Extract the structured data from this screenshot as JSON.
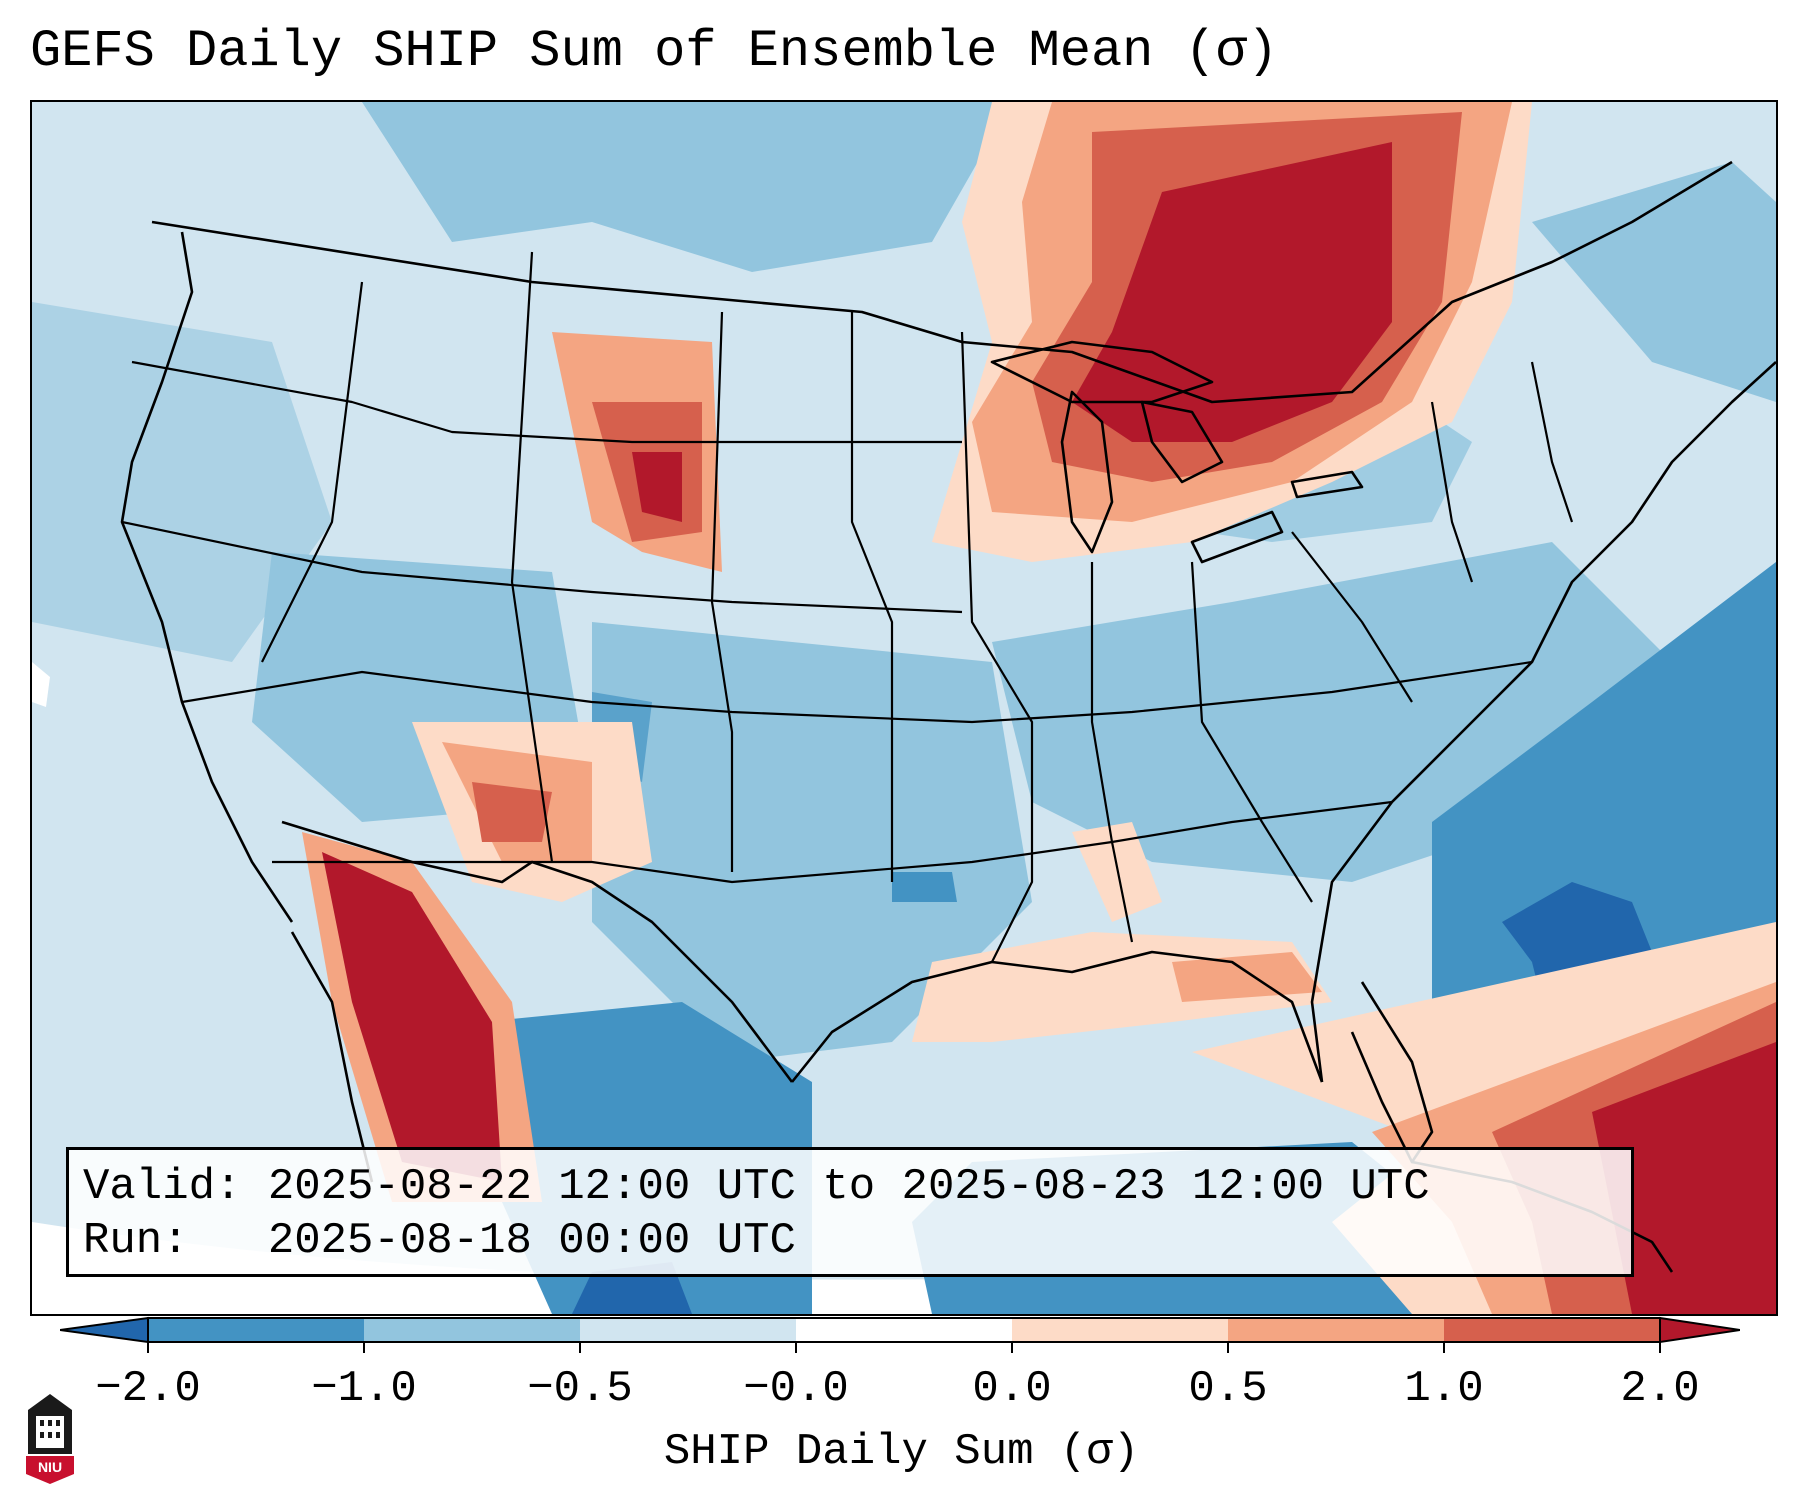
{
  "title": "GEFS Daily SHIP Sum of Ensemble Mean (σ)",
  "info": {
    "valid_line": "Valid: 2025-08-22 12:00 UTC to 2025-08-23 12:00 UTC",
    "run_line": "Run:   2025-08-18 00:00 UTC"
  },
  "colorbar": {
    "label": "SHIP Daily Sum (σ)",
    "ticks": [
      "−2.0",
      "−1.0",
      "−0.5",
      "−0.0",
      "0.0",
      "0.5",
      "1.0",
      "2.0"
    ],
    "colors": [
      "#2166ac",
      "#4393c3",
      "#92c5de",
      "#d1e5f0",
      "#fddbc7",
      "#f4a582",
      "#d6604d",
      "#b2182b"
    ],
    "extend": "both"
  },
  "map": {
    "projection": "Lambert Conformal - CONUS",
    "background_color": "#d1e5f0"
  },
  "logo": {
    "text": "NIU",
    "icon": "niu-logo-icon"
  }
}
